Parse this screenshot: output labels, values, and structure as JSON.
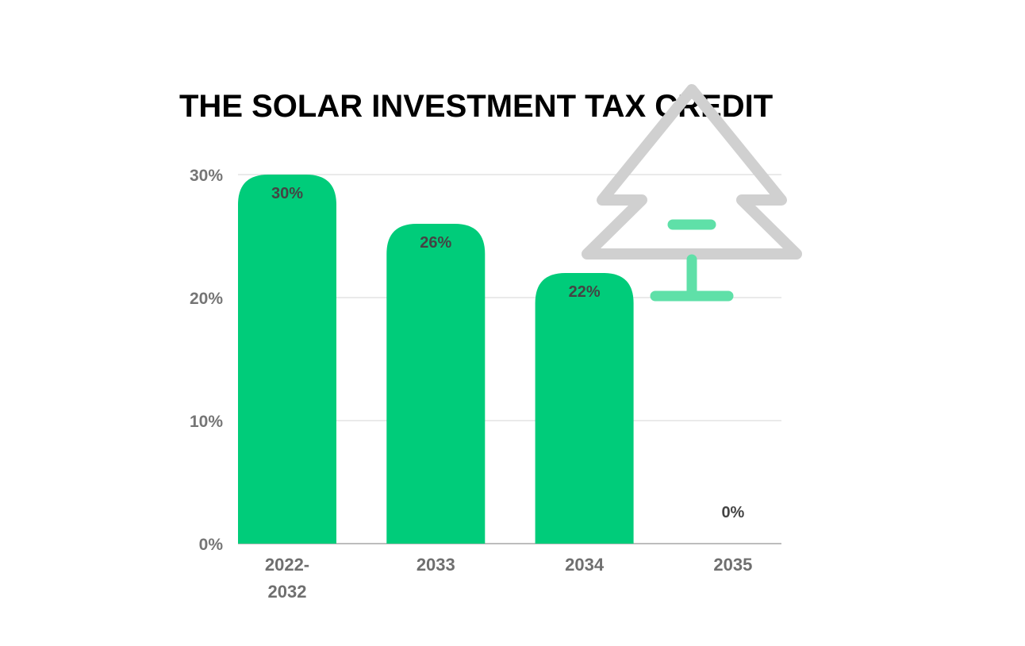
{
  "chart_data": {
    "type": "bar",
    "title": "THE SOLAR INVESTMENT TAX CREDIT",
    "categories": [
      "2022-2032",
      "2033",
      "2034",
      "2035"
    ],
    "values": [
      30,
      26,
      22,
      0
    ],
    "data_labels": [
      "30%",
      "26%",
      "22%",
      "0%"
    ],
    "yticks": [
      0,
      10,
      20,
      30
    ],
    "ytick_labels": [
      "0%",
      "10%",
      "20%",
      "30%"
    ],
    "ylim": [
      0,
      30
    ],
    "grid": true,
    "bar_color": "#00cc7a",
    "xlabel": "",
    "ylabel": ""
  },
  "decoration": {
    "icon": "pine-tree-icon",
    "outline_color": "#d0d0d0",
    "accent_color": "#5fe0a8"
  }
}
